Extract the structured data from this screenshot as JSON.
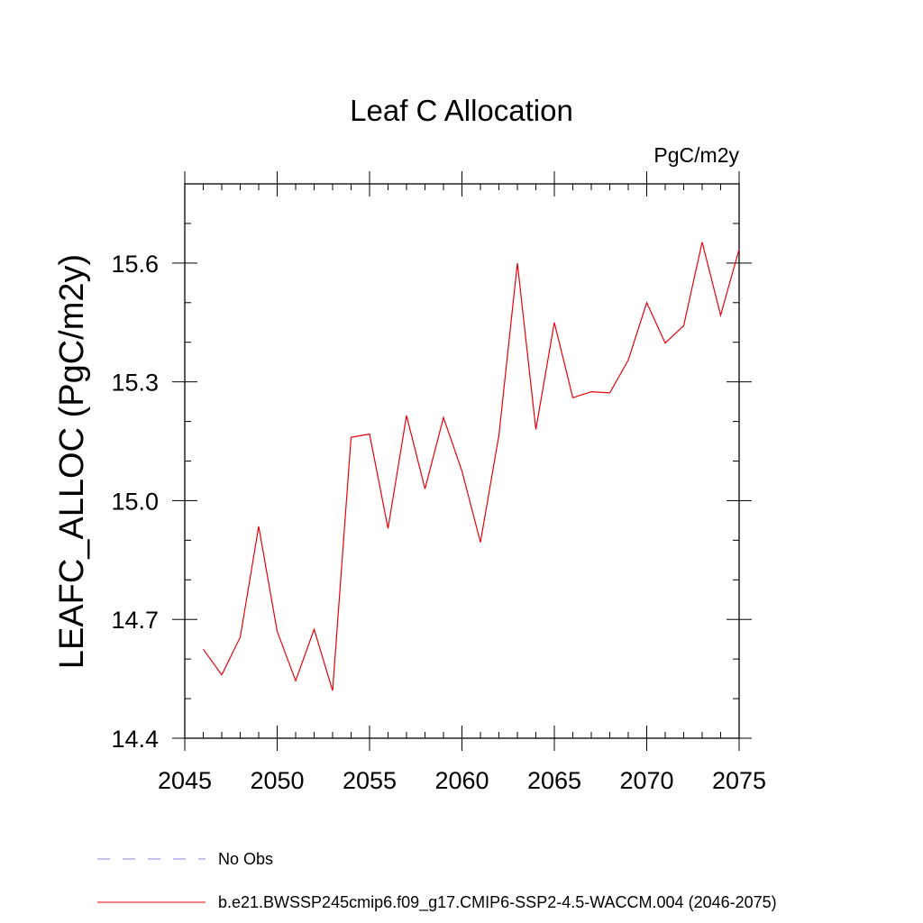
{
  "chart_data": {
    "type": "line",
    "title": "Leaf C Allocation",
    "units": "PgC/m2y",
    "xlabel": "",
    "ylabel": "LEAFC_ALLOC  (PgC/m2y)",
    "xlim": [
      2045,
      2075
    ],
    "ylim": [
      14.4,
      15.8
    ],
    "x_ticks": [
      2045,
      2050,
      2055,
      2060,
      2065,
      2070,
      2075
    ],
    "x_tick_labels": [
      "2045",
      "2050",
      "2055",
      "2060",
      "2065",
      "2070",
      "2075"
    ],
    "y_ticks": [
      14.4,
      14.7,
      15.0,
      15.3,
      15.6
    ],
    "y_tick_labels": [
      "14.4",
      "14.7",
      "15.0",
      "15.3",
      "15.6"
    ],
    "grid": false,
    "legend_position": "bottom",
    "series": [
      {
        "name": "b.e21.BWSSP245cmip6.f09_g17.CMIP6-SSP2-4.5-WACCM.004 (2046-2075)",
        "color": "#e8000b",
        "style": "solid",
        "x": [
          2046,
          2047,
          2048,
          2049,
          2050,
          2051,
          2052,
          2053,
          2054,
          2055,
          2056,
          2057,
          2058,
          2059,
          2060,
          2061,
          2062,
          2063,
          2064,
          2065,
          2066,
          2067,
          2068,
          2069,
          2070,
          2071,
          2072,
          2073,
          2074,
          2075
        ],
        "y": [
          14.625,
          14.56,
          14.655,
          14.935,
          14.67,
          14.545,
          14.675,
          14.52,
          15.16,
          15.168,
          14.93,
          15.215,
          15.03,
          15.21,
          15.075,
          14.895,
          15.165,
          15.6,
          15.18,
          15.45,
          15.26,
          15.275,
          15.272,
          15.355,
          15.5,
          15.398,
          15.442,
          15.653,
          15.468,
          15.635
        ]
      }
    ],
    "legend": [
      {
        "label": "No Obs",
        "color": "#8a7fd0",
        "style": "dashed"
      },
      {
        "label": "b.e21.BWSSP245cmip6.f09_g17.CMIP6-SSP2-4.5-WACCM.004 (2046-2075)",
        "color": "#e8000b",
        "style": "solid"
      }
    ]
  }
}
